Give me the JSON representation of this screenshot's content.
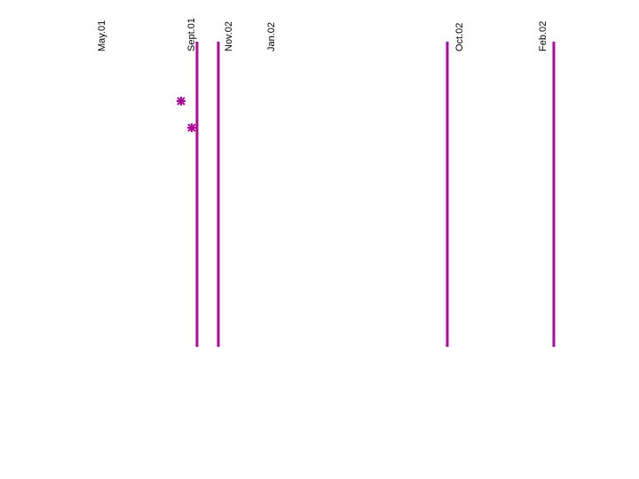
{
  "labels": [
    "May.01",
    "Sept.01",
    "Nov.02",
    "Jan.02",
    "Oct.02",
    "Feb.02"
  ]
}
